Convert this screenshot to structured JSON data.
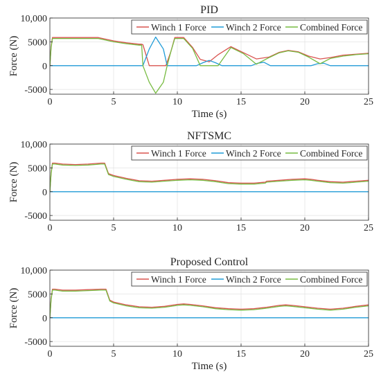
{
  "figure": {
    "colors": {
      "winch1": "#d9534f",
      "winch2": "#1f9bd7",
      "combined": "#77bb41",
      "axis": "#262626",
      "grid": "#e3e3e3"
    }
  },
  "chart_data": [
    {
      "type": "line",
      "title": "PID",
      "xlabel": "Time (s)",
      "ylabel": "Force (N)",
      "xlim": [
        0,
        25
      ],
      "ylim": [
        -6000,
        10000
      ],
      "xticks": [
        0,
        5,
        10,
        15,
        20,
        25
      ],
      "xtick_labels": [
        "0",
        "5",
        "10",
        "15",
        "20",
        "25"
      ],
      "yticks": [
        -5000,
        0,
        5000,
        10000
      ],
      "ytick_labels": [
        "-5000",
        "0",
        "5000",
        "10,000"
      ],
      "grid": true,
      "legend": "top-right",
      "series": [
        {
          "name": "Winch 1 Force",
          "x": [
            0,
            0.1,
            0.2,
            0.3,
            3.8,
            5,
            6,
            7,
            7.2,
            7.3,
            7.8,
            8.5,
            9.1,
            9.5,
            9.8,
            10.5,
            11.2,
            11.8,
            12.5,
            13.2,
            14.2,
            15.2,
            16.2,
            17.2,
            18,
            18.7,
            19.5,
            20.3,
            21.2,
            22,
            23,
            24,
            25
          ],
          "y": [
            0,
            4000,
            5900,
            5900,
            5900,
            5200,
            4800,
            4500,
            4500,
            4400,
            0,
            0,
            0,
            3000,
            5900,
            5900,
            3800,
            1300,
            800,
            2300,
            4000,
            2700,
            1400,
            1800,
            2800,
            3200,
            2900,
            2000,
            1400,
            1700,
            2200,
            2400,
            2600
          ]
        },
        {
          "name": "Winch 2 Force",
          "x": [
            0,
            7.2,
            7.3,
            7.8,
            8.3,
            8.9,
            9.2,
            11.5,
            12,
            12.5,
            13,
            13.5,
            15.8,
            16.3,
            16.8,
            17.3,
            20.5,
            21,
            21.5,
            22,
            25
          ],
          "y": [
            0,
            0,
            0,
            3500,
            6000,
            3500,
            0,
            0,
            600,
            1100,
            600,
            0,
            0,
            500,
            700,
            0,
            0,
            400,
            500,
            0,
            0
          ]
        },
        {
          "name": "Combined Force",
          "x": [
            0,
            0.1,
            0.2,
            0.3,
            3.8,
            5,
            6,
            7,
            7.2,
            7.3,
            7.8,
            8.3,
            8.9,
            9.2,
            9.5,
            9.8,
            10.5,
            11.2,
            11.8,
            12.5,
            13.2,
            14.2,
            15.2,
            16.2,
            17.2,
            18,
            18.7,
            19.5,
            20.3,
            21.2,
            22,
            23,
            24,
            25
          ],
          "y": [
            0,
            3800,
            5700,
            5700,
            5700,
            5000,
            4600,
            4300,
            4300,
            0,
            -3500,
            -5800,
            -3500,
            0,
            3000,
            5700,
            5700,
            3600,
            0,
            0,
            0,
            3800,
            2500,
            300,
            1700,
            2700,
            3100,
            2800,
            1800,
            400,
            1500,
            2000,
            2300,
            2500
          ]
        }
      ]
    },
    {
      "type": "line",
      "title": "NFTSMC",
      "xlabel": "",
      "ylabel": "Force (N)",
      "xlim": [
        0,
        25
      ],
      "ylim": [
        -6000,
        10000
      ],
      "xticks": [
        0,
        5,
        10,
        15,
        20,
        25
      ],
      "xtick_labels": [
        "0",
        "5",
        "10",
        "15",
        "20",
        "25"
      ],
      "yticks": [
        -5000,
        0,
        5000,
        10000
      ],
      "ytick_labels": [
        "-5000",
        "0",
        "5000",
        "10,000"
      ],
      "grid": true,
      "legend": "top-right",
      "series": [
        {
          "name": "Winch 1 Force",
          "x": [
            0,
            0.1,
            0.2,
            0.4,
            1,
            2,
            3,
            4,
            4.3,
            4.6,
            5,
            6,
            7,
            8,
            9,
            10,
            11,
            12,
            13,
            14,
            15,
            16,
            16.9,
            17,
            18,
            19,
            20,
            20.5,
            21,
            22,
            23,
            23.5,
            24,
            25
          ],
          "y": [
            0,
            4000,
            6000,
            6000,
            5800,
            5700,
            5800,
            6000,
            6000,
            3800,
            3400,
            2800,
            2300,
            2200,
            2400,
            2600,
            2700,
            2600,
            2300,
            1900,
            1800,
            1800,
            2000,
            2200,
            2400,
            2600,
            2700,
            2600,
            2400,
            2100,
            2000,
            2100,
            2200,
            2400
          ]
        },
        {
          "name": "Winch 2 Force",
          "x": [
            0,
            25
          ],
          "y": [
            0,
            0
          ]
        },
        {
          "name": "Combined Force",
          "x": [
            0,
            0.1,
            0.2,
            0.4,
            1,
            2,
            3,
            4,
            4.3,
            4.6,
            5,
            6,
            7,
            8,
            9,
            10,
            11,
            12,
            13,
            14,
            15,
            16,
            16.9,
            17,
            18,
            19,
            20,
            20.5,
            21,
            22,
            23,
            23.5,
            24,
            25
          ],
          "y": [
            0,
            3800,
            5800,
            5800,
            5600,
            5500,
            5600,
            5800,
            5800,
            3600,
            3200,
            2600,
            2100,
            2000,
            2200,
            2400,
            2500,
            2400,
            2100,
            1700,
            1600,
            1600,
            1800,
            2000,
            2200,
            2400,
            2500,
            2400,
            2200,
            1900,
            1800,
            1900,
            2000,
            2200
          ]
        }
      ]
    },
    {
      "type": "line",
      "title": "Proposed Control",
      "xlabel": "Time (s)",
      "ylabel": "Force (N)",
      "xlim": [
        0,
        25
      ],
      "ylim": [
        -6000,
        10000
      ],
      "xticks": [
        0,
        5,
        10,
        15,
        20,
        25
      ],
      "xtick_labels": [
        "0",
        "5",
        "10",
        "15",
        "20",
        "25"
      ],
      "yticks": [
        -5000,
        0,
        5000,
        10000
      ],
      "ytick_labels": [
        "-5000",
        "0",
        "5000",
        "10,000"
      ],
      "grid": true,
      "legend": "top-right",
      "series": [
        {
          "name": "Winch 1 Force",
          "x": [
            0,
            0.1,
            0.2,
            0.4,
            1,
            2,
            3,
            4,
            4.4,
            4.7,
            5,
            6,
            7,
            8,
            9,
            10,
            10.5,
            11,
            12,
            13,
            14,
            15,
            16,
            17,
            18,
            18.5,
            19,
            20,
            21,
            22,
            23,
            24,
            25
          ],
          "y": [
            0,
            4000,
            6000,
            6000,
            5800,
            5800,
            5900,
            6000,
            6000,
            3700,
            3300,
            2700,
            2300,
            2200,
            2400,
            2800,
            2900,
            2800,
            2500,
            2100,
            1900,
            1800,
            1900,
            2200,
            2600,
            2700,
            2600,
            2300,
            2000,
            1800,
            2000,
            2400,
            2700
          ]
        },
        {
          "name": "Winch 2 Force",
          "x": [
            0,
            25
          ],
          "y": [
            0,
            0
          ]
        },
        {
          "name": "Combined Force",
          "x": [
            0,
            0.1,
            0.2,
            0.4,
            1,
            2,
            3,
            4,
            4.4,
            4.7,
            5,
            6,
            7,
            8,
            9,
            10,
            10.5,
            11,
            12,
            13,
            14,
            15,
            16,
            17,
            18,
            18.5,
            19,
            20,
            21,
            22,
            23,
            24,
            25
          ],
          "y": [
            0,
            3800,
            5800,
            5800,
            5600,
            5600,
            5700,
            5800,
            5800,
            3500,
            3100,
            2500,
            2100,
            2000,
            2200,
            2600,
            2700,
            2600,
            2300,
            1900,
            1700,
            1600,
            1700,
            2000,
            2400,
            2500,
            2400,
            2100,
            1800,
            1600,
            1800,
            2200,
            2500
          ]
        }
      ]
    }
  ]
}
